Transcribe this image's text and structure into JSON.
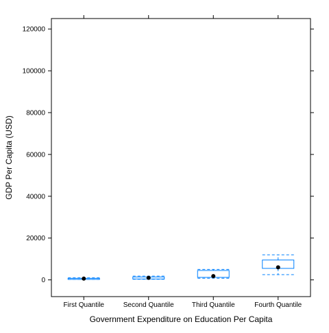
{
  "chart_data": {
    "type": "box",
    "title": "",
    "xlabel": "Government Expenditure on Education Per Capita",
    "ylabel": "GDP Per Capita (USD)",
    "ylim": [
      -8000,
      125000
    ],
    "yticks": [
      0,
      20000,
      40000,
      60000,
      80000,
      100000,
      120000
    ],
    "categories": [
      "First Quantile",
      "Second Quantile",
      "Third Quantile",
      "Fourth Quantile"
    ],
    "boxes": [
      {
        "category": "First Quantile",
        "whisker_low": 200,
        "q1": 250,
        "median": 600,
        "q3": 750,
        "whisker_high": 1000
      },
      {
        "category": "Second Quantile",
        "whisker_low": 300,
        "q1": 450,
        "median": 1000,
        "q3": 1400,
        "whisker_high": 1800
      },
      {
        "category": "Third Quantile",
        "whisker_low": 800,
        "q1": 1200,
        "median": 1800,
        "q3": 4500,
        "whisker_high": 5000
      },
      {
        "category": "Fourth Quantile",
        "whisker_low": 2500,
        "q1": 5500,
        "median": 6000,
        "q3": 9500,
        "whisker_high": 12000
      }
    ],
    "grid": false,
    "legend": "none",
    "colors": {
      "box": "#0080ff",
      "point": "#000000",
      "axis": "#000000"
    }
  }
}
